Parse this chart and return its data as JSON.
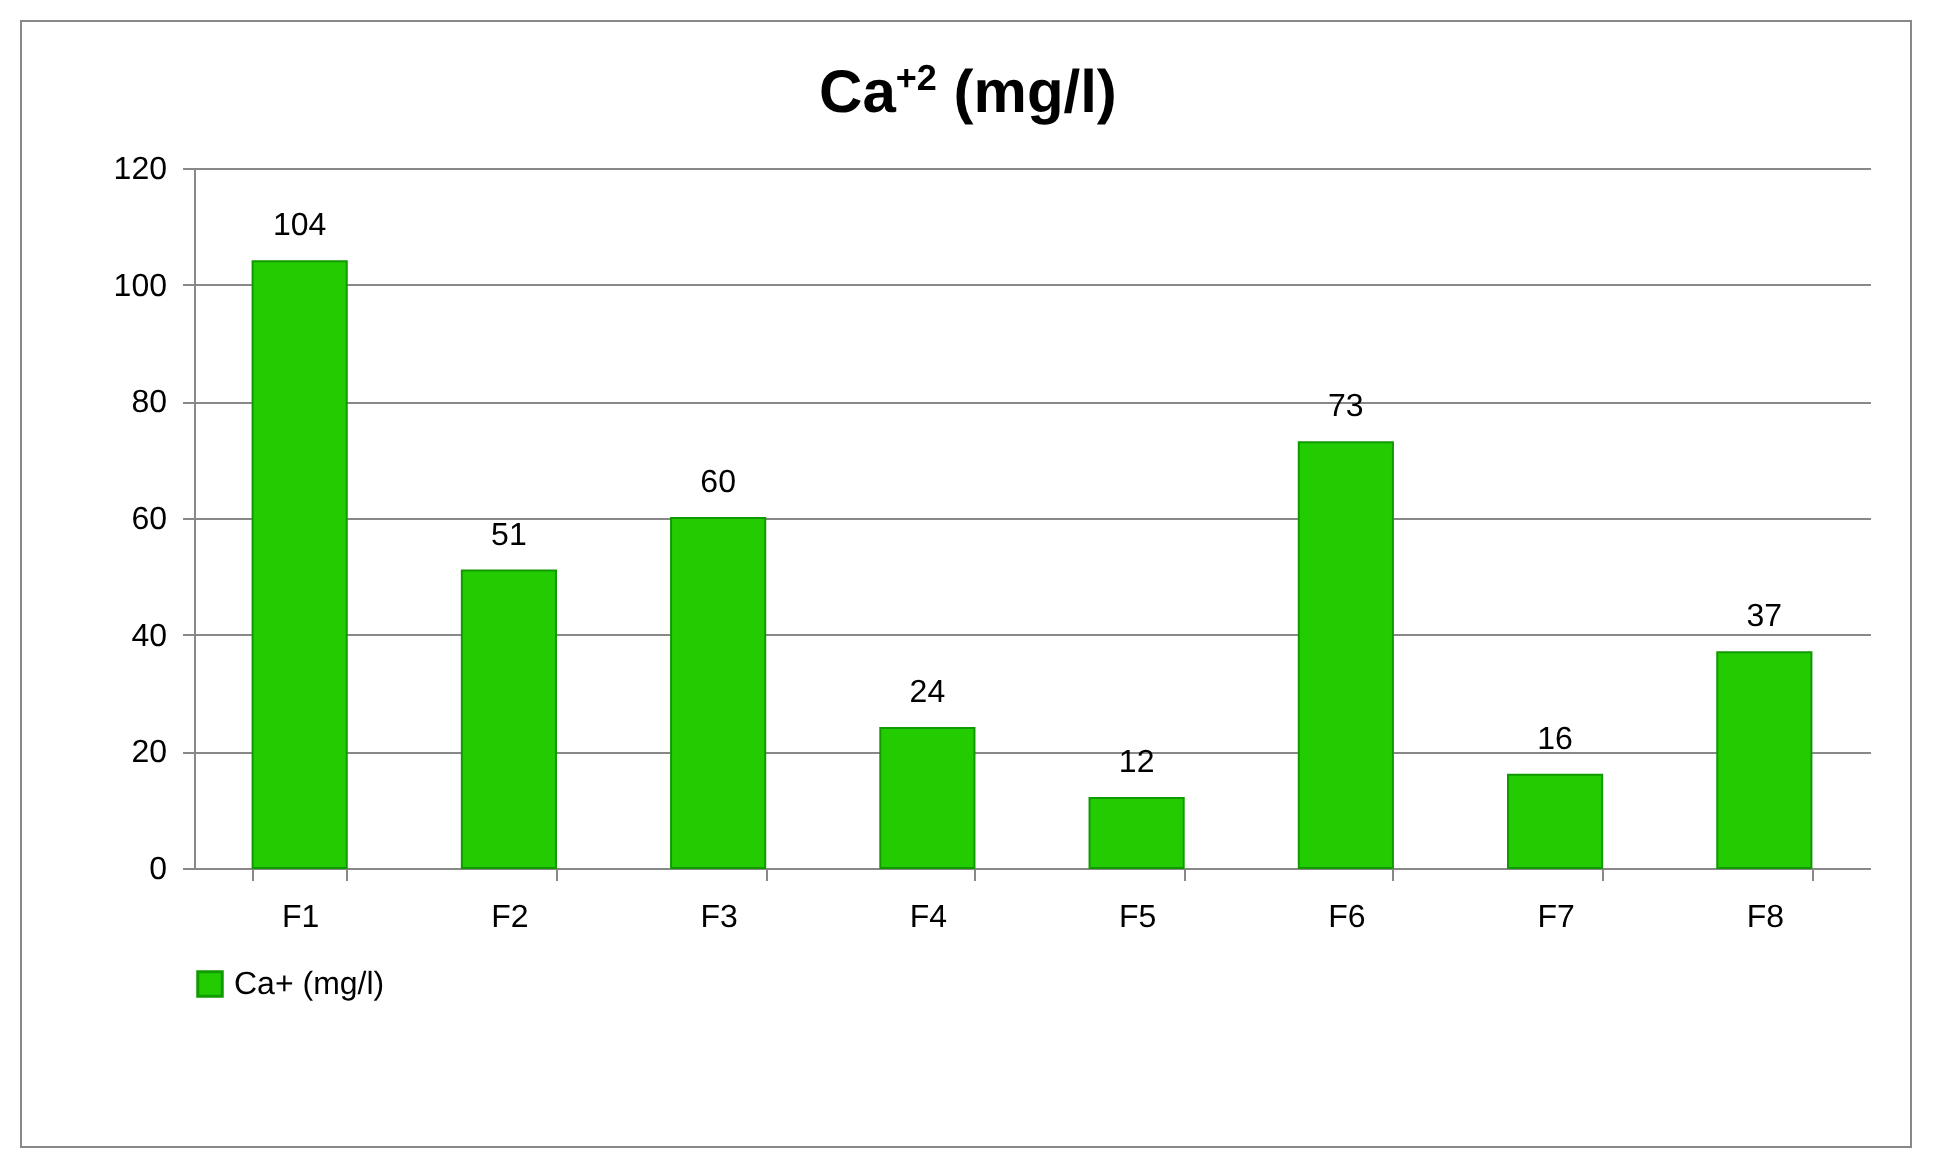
{
  "chart_data": {
    "type": "bar",
    "title": "Ca$^{+2}$ (mg/l)",
    "categories": [
      "F1",
      "F2",
      "F3",
      "F4",
      "F5",
      "F6",
      "F7",
      "F8"
    ],
    "series": [
      {
        "name": "Ca+ (mg/l)",
        "color": "#22cc00",
        "values": [
          104,
          51,
          60,
          24,
          12,
          73,
          16,
          37
        ]
      }
    ],
    "ylim": [
      0,
      120
    ],
    "yticks": [
      0,
      20,
      40,
      60,
      80,
      100,
      120
    ],
    "grid": "y",
    "legend": "bottom",
    "data_labels": true
  }
}
